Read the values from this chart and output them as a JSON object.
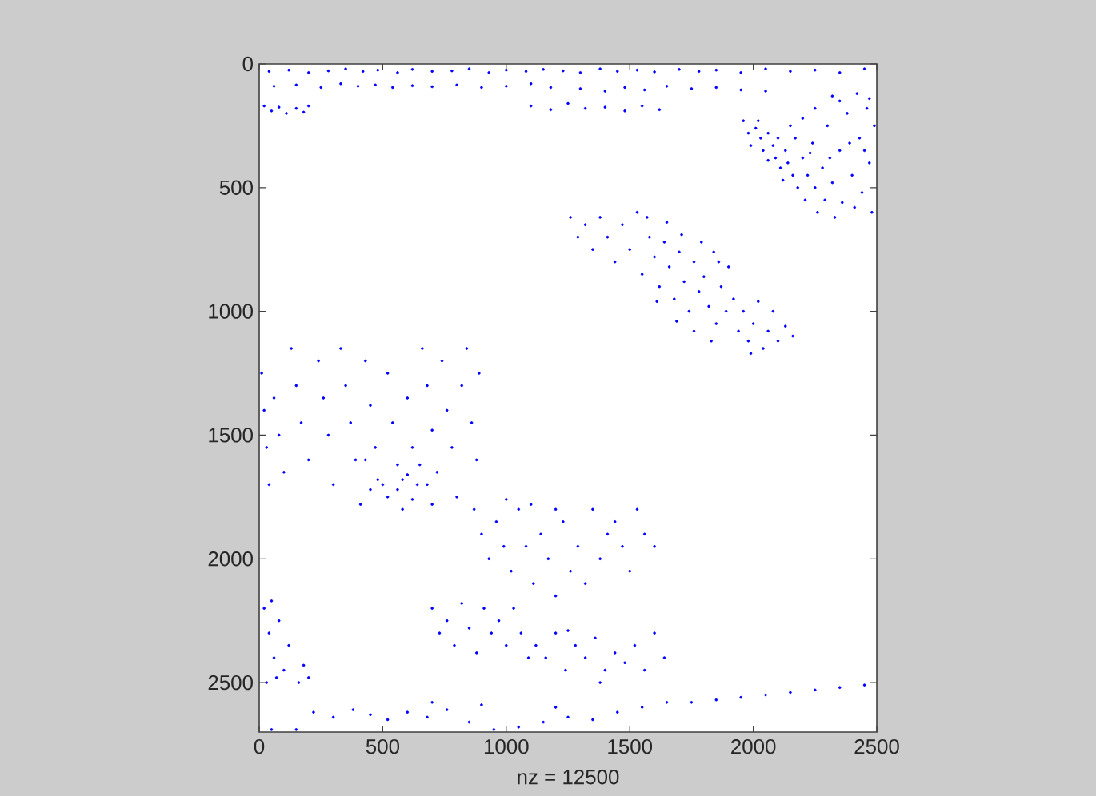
{
  "chart_data": {
    "type": "scatter",
    "xlabel": "nz = 12500",
    "marker": "circle",
    "xlim": [
      0,
      2500
    ],
    "ylim": [
      2700,
      0
    ],
    "xticks": [
      0,
      500,
      1000,
      1500,
      2000,
      2500
    ],
    "yticks": [
      0,
      500,
      1000,
      1500,
      2000,
      2500
    ],
    "series": [
      {
        "color": "#0000ff",
        "x": [
          40,
          120,
          200,
          280,
          350,
          420,
          480,
          560,
          620,
          700,
          780,
          850,
          930,
          1000,
          1080,
          1150,
          1230,
          1300,
          1380,
          1450,
          1530,
          1600,
          1700,
          1780,
          1850,
          1950,
          2050,
          2150,
          2250,
          2350,
          2450,
          60,
          150,
          250,
          330,
          400,
          470,
          540,
          620,
          700,
          800,
          900,
          1000,
          1100,
          1180,
          1300,
          1400,
          1480,
          1560,
          1650,
          1750,
          1850,
          1950,
          2050,
          20,
          50,
          80,
          110,
          150,
          180,
          200,
          1100,
          1180,
          1250,
          1320,
          1400,
          1480,
          1550,
          1620
        ],
        "values": [
          30,
          25,
          35,
          28,
          20,
          30,
          25,
          35,
          22,
          30,
          28,
          20,
          35,
          25,
          30,
          22,
          28,
          35,
          20,
          30,
          25,
          32,
          22,
          30,
          25,
          35,
          20,
          30,
          25,
          35,
          20,
          90,
          85,
          95,
          80,
          90,
          85,
          95,
          88,
          92,
          85,
          95,
          90,
          80,
          95,
          100,
          110,
          95,
          105,
          90,
          100,
          95,
          105,
          110,
          170,
          190,
          175,
          200,
          180,
          195,
          170,
          170,
          185,
          160,
          180,
          175,
          190,
          170,
          185
        ]
      },
      {
        "color": "#0000ff",
        "x": [
          1960,
          1980,
          1990,
          2010,
          2030,
          2040,
          2060,
          2080,
          2090,
          2100,
          2110,
          2130,
          2140,
          2160,
          2170,
          2180,
          2200,
          2210,
          2220,
          2240,
          2250,
          2260,
          2280,
          2290,
          2300,
          2320,
          2330,
          2350,
          2360,
          2380,
          2400,
          2410,
          2430,
          2440,
          2460,
          2470,
          2480,
          2490,
          2350,
          2420,
          2470,
          2320,
          2250,
          2200,
          2150,
          2060,
          2020,
          2120,
          2230,
          2310,
          2390,
          2450
        ],
        "values": [
          230,
          280,
          330,
          260,
          300,
          350,
          280,
          330,
          380,
          300,
          420,
          350,
          400,
          450,
          300,
          500,
          380,
          550,
          450,
          320,
          500,
          600,
          420,
          550,
          250,
          480,
          620,
          350,
          560,
          200,
          450,
          580,
          300,
          520,
          180,
          400,
          600,
          250,
          150,
          120,
          140,
          130,
          180,
          220,
          250,
          390,
          230,
          470,
          360,
          380,
          320,
          350
        ]
      },
      {
        "color": "#0000ff",
        "x": [
          1260,
          1290,
          1320,
          1350,
          1380,
          1410,
          1440,
          1470,
          1500,
          1530,
          1550,
          1580,
          1600,
          1620,
          1640,
          1660,
          1680,
          1700,
          1720,
          1740,
          1760,
          1780,
          1800,
          1820,
          1840,
          1850,
          1870,
          1890,
          1900,
          1920,
          1940,
          1960,
          1980,
          2000,
          2020,
          2040,
          2060,
          2080,
          2100,
          2130,
          2160,
          1570,
          1650,
          1710,
          1790,
          1860,
          1690,
          1760,
          1610,
          1830,
          1990
        ],
        "values": [
          620,
          700,
          650,
          750,
          620,
          700,
          800,
          650,
          750,
          600,
          850,
          700,
          780,
          900,
          720,
          820,
          950,
          760,
          880,
          1000,
          800,
          920,
          860,
          980,
          760,
          1050,
          900,
          1000,
          820,
          950,
          1080,
          1000,
          1120,
          1050,
          960,
          1150,
          1080,
          1000,
          1120,
          1060,
          1100,
          620,
          640,
          690,
          720,
          800,
          1040,
          1080,
          960,
          1120,
          1170
        ]
      },
      {
        "color": "#0000ff",
        "x": [
          10,
          20,
          30,
          40,
          60,
          80,
          100,
          130,
          150,
          170,
          200,
          240,
          260,
          280,
          300,
          330,
          350,
          370,
          390,
          410,
          430,
          450,
          470,
          500,
          520,
          540,
          560,
          580,
          600,
          620,
          640,
          660,
          680,
          700,
          720,
          740,
          760,
          780,
          800,
          820,
          840,
          860,
          880,
          890,
          480,
          560,
          650,
          700,
          600,
          430,
          520,
          580,
          620,
          680,
          450
        ],
        "values": [
          1250,
          1400,
          1550,
          1700,
          1350,
          1500,
          1650,
          1150,
          1300,
          1450,
          1600,
          1200,
          1350,
          1500,
          1700,
          1150,
          1300,
          1450,
          1600,
          1780,
          1200,
          1380,
          1550,
          1700,
          1250,
          1450,
          1620,
          1800,
          1350,
          1550,
          1700,
          1150,
          1300,
          1480,
          1650,
          1200,
          1400,
          1550,
          1750,
          1300,
          1150,
          1450,
          1600,
          1250,
          1680,
          1720,
          1620,
          1780,
          1660,
          1600,
          1750,
          1680,
          1760,
          1700,
          1720
        ]
      },
      {
        "color": "#0000ff",
        "x": [
          870,
          900,
          930,
          960,
          990,
          1020,
          1050,
          1080,
          1110,
          1140,
          1170,
          1200,
          1230,
          1260,
          1290,
          1320,
          1350,
          1380,
          1410,
          1440,
          1470,
          1500,
          1530,
          1560,
          1600,
          1000,
          1100,
          1200,
          700,
          730,
          760,
          790,
          820,
          850,
          880,
          910,
          940,
          970,
          1000,
          1030,
          1060,
          1090,
          1120,
          1160,
          1200,
          1240,
          1280,
          1320,
          1360,
          1400,
          1440,
          1480,
          1520,
          1560,
          1600,
          1640,
          1380,
          1250
        ],
        "values": [
          1800,
          1900,
          2000,
          1850,
          1950,
          2050,
          1800,
          1950,
          2100,
          1900,
          2000,
          2150,
          1850,
          2050,
          1950,
          2100,
          1800,
          2000,
          1900,
          1850,
          1950,
          2050,
          1800,
          1900,
          1950,
          1760,
          1780,
          1800,
          2200,
          2300,
          2250,
          2350,
          2180,
          2280,
          2380,
          2200,
          2300,
          2250,
          2350,
          2200,
          2300,
          2400,
          2350,
          2400,
          2300,
          2450,
          2350,
          2400,
          2320,
          2450,
          2380,
          2420,
          2350,
          2450,
          2300,
          2400,
          2500,
          2290
        ]
      },
      {
        "color": "#0000ff",
        "x": [
          20,
          40,
          60,
          80,
          100,
          120,
          30,
          70,
          180,
          200,
          160,
          50,
          220,
          300,
          380,
          450,
          520,
          600,
          680,
          760,
          850,
          950,
          1050,
          1150,
          1250,
          1350,
          1450,
          1550,
          1650,
          1750,
          1850,
          1950,
          2050,
          2150,
          2250,
          2350,
          2450,
          50,
          150,
          700,
          900,
          1200
        ],
        "values": [
          2200,
          2300,
          2400,
          2250,
          2450,
          2350,
          2500,
          2480,
          2430,
          2480,
          2500,
          2170,
          2620,
          2640,
          2610,
          2630,
          2650,
          2620,
          2640,
          2610,
          2660,
          2690,
          2680,
          2660,
          2640,
          2650,
          2620,
          2600,
          2580,
          2580,
          2570,
          2560,
          2550,
          2540,
          2530,
          2520,
          2510,
          2690,
          2690,
          2580,
          2590,
          2600
        ]
      }
    ]
  }
}
